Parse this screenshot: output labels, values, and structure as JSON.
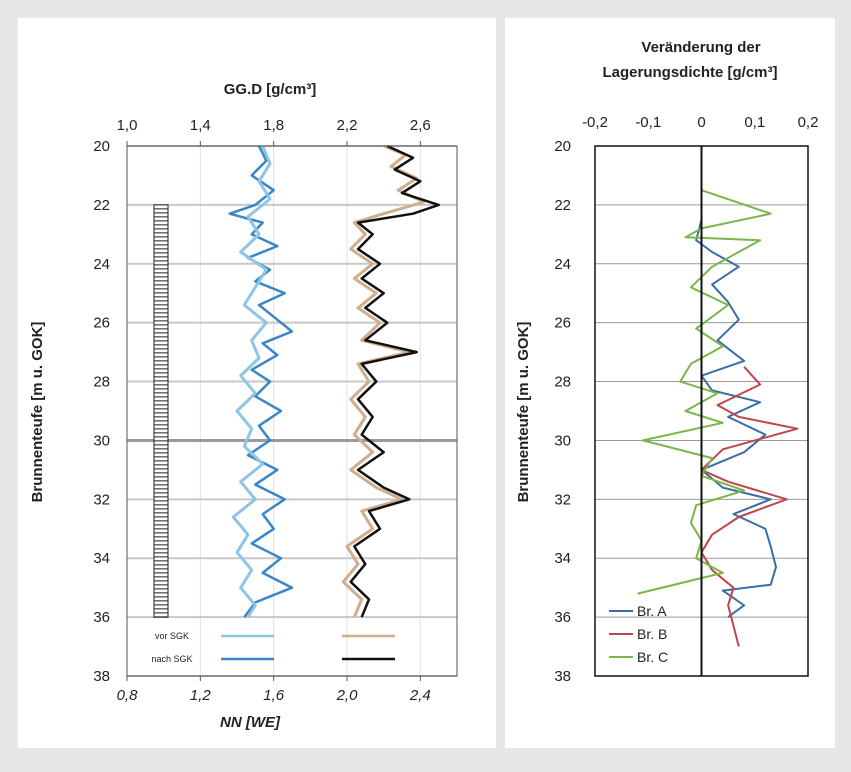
{
  "chart_data": [
    {
      "type": "line",
      "title_top": "GG.D [g/cm³]",
      "xlabel_bottom": "NN [WE]",
      "ylabel": "Brunnenteufe [m u. GOK]",
      "top_axis": {
        "ticks": [
          "1,0",
          "1,4",
          "1,8",
          "2,2",
          "2,6"
        ],
        "range": [
          1.0,
          2.8
        ]
      },
      "bottom_axis": {
        "ticks": [
          "0,8",
          "1,2",
          "1,6",
          "2,0",
          "2,4"
        ],
        "range": [
          0.8,
          2.6
        ]
      },
      "y_axis": {
        "ticks": [
          "20",
          "22",
          "24",
          "26",
          "28",
          "30",
          "32",
          "34",
          "36",
          "38"
        ],
        "range": [
          20,
          38
        ],
        "inverted": true
      },
      "legend": [
        {
          "label": "vor SGK",
          "colors": [
            "#8ec4e6",
            "#cfae8c"
          ]
        },
        {
          "label": "nach SGK",
          "colors": [
            "#3a86c6",
            "#111111"
          ]
        }
      ],
      "column_marker": {
        "from_depth": 22,
        "to_depth": 36
      },
      "grid": true,
      "series": [
        {
          "color": "#3a86c6",
          "points": [
            [
              1.72,
              20.0
            ],
            [
              1.76,
              20.5
            ],
            [
              1.68,
              21.0
            ],
            [
              1.8,
              21.5
            ],
            [
              1.7,
              22.0
            ],
            [
              1.56,
              22.3
            ],
            [
              1.74,
              22.6
            ],
            [
              1.68,
              23.0
            ],
            [
              1.82,
              23.4
            ],
            [
              1.66,
              23.8
            ],
            [
              1.78,
              24.2
            ],
            [
              1.7,
              24.6
            ],
            [
              1.86,
              25.0
            ],
            [
              1.72,
              25.4
            ],
            [
              1.8,
              25.8
            ],
            [
              1.9,
              26.3
            ],
            [
              1.74,
              26.7
            ],
            [
              1.82,
              27.1
            ],
            [
              1.68,
              27.6
            ],
            [
              1.78,
              28.0
            ],
            [
              1.7,
              28.5
            ],
            [
              1.84,
              29.0
            ],
            [
              1.72,
              29.5
            ],
            [
              1.78,
              30.0
            ],
            [
              1.66,
              30.5
            ],
            [
              1.82,
              31.0
            ],
            [
              1.7,
              31.5
            ],
            [
              1.86,
              32.0
            ],
            [
              1.74,
              32.5
            ],
            [
              1.8,
              33.0
            ],
            [
              1.68,
              33.5
            ],
            [
              1.84,
              34.0
            ],
            [
              1.74,
              34.5
            ],
            [
              1.9,
              35.0
            ],
            [
              1.7,
              35.5
            ],
            [
              1.64,
              36.0
            ]
          ]
        },
        {
          "color": "#8ec4e6",
          "points": [
            [
              1.74,
              20.0
            ],
            [
              1.78,
              20.6
            ],
            [
              1.72,
              21.2
            ],
            [
              1.78,
              21.8
            ],
            [
              1.66,
              22.4
            ],
            [
              1.72,
              23.0
            ],
            [
              1.62,
              23.6
            ],
            [
              1.76,
              24.2
            ],
            [
              1.7,
              24.8
            ],
            [
              1.64,
              25.4
            ],
            [
              1.76,
              26.0
            ],
            [
              1.68,
              26.6
            ],
            [
              1.72,
              27.2
            ],
            [
              1.62,
              27.8
            ],
            [
              1.7,
              28.4
            ],
            [
              1.6,
              29.0
            ],
            [
              1.68,
              29.6
            ],
            [
              1.64,
              30.2
            ],
            [
              1.74,
              30.8
            ],
            [
              1.62,
              31.4
            ],
            [
              1.7,
              32.0
            ],
            [
              1.58,
              32.6
            ],
            [
              1.66,
              33.2
            ],
            [
              1.6,
              33.8
            ],
            [
              1.68,
              34.4
            ],
            [
              1.62,
              35.0
            ],
            [
              1.7,
              35.6
            ],
            [
              1.66,
              36.0
            ]
          ]
        },
        {
          "color": "#cfae8c",
          "points": [
            [
              2.4,
              20.0
            ],
            [
              2.52,
              20.3
            ],
            [
              2.44,
              20.7
            ],
            [
              2.58,
              21.1
            ],
            [
              2.48,
              21.5
            ],
            [
              2.62,
              21.9
            ],
            [
              2.4,
              22.3
            ],
            [
              2.24,
              22.6
            ],
            [
              2.3,
              23.0
            ],
            [
              2.22,
              23.5
            ],
            [
              2.34,
              24.0
            ],
            [
              2.24,
              24.5
            ],
            [
              2.36,
              25.0
            ],
            [
              2.26,
              25.5
            ],
            [
              2.38,
              26.0
            ],
            [
              2.28,
              26.6
            ],
            [
              2.54,
              27.0
            ],
            [
              2.26,
              27.4
            ],
            [
              2.32,
              28.0
            ],
            [
              2.22,
              28.6
            ],
            [
              2.3,
              29.2
            ],
            [
              2.24,
              29.8
            ],
            [
              2.34,
              30.4
            ],
            [
              2.22,
              31.0
            ],
            [
              2.36,
              31.6
            ],
            [
              2.5,
              32.0
            ],
            [
              2.28,
              32.4
            ],
            [
              2.34,
              33.0
            ],
            [
              2.2,
              33.6
            ],
            [
              2.26,
              34.2
            ],
            [
              2.18,
              34.8
            ],
            [
              2.28,
              35.4
            ],
            [
              2.24,
              36.0
            ]
          ]
        },
        {
          "color": "#111111",
          "points": [
            [
              2.42,
              20.0
            ],
            [
              2.56,
              20.4
            ],
            [
              2.46,
              20.8
            ],
            [
              2.6,
              21.2
            ],
            [
              2.5,
              21.6
            ],
            [
              2.7,
              22.0
            ],
            [
              2.56,
              22.3
            ],
            [
              2.26,
              22.6
            ],
            [
              2.34,
              23.0
            ],
            [
              2.26,
              23.5
            ],
            [
              2.38,
              24.0
            ],
            [
              2.28,
              24.5
            ],
            [
              2.4,
              25.0
            ],
            [
              2.3,
              25.5
            ],
            [
              2.42,
              26.0
            ],
            [
              2.3,
              26.6
            ],
            [
              2.58,
              27.0
            ],
            [
              2.28,
              27.4
            ],
            [
              2.36,
              28.0
            ],
            [
              2.26,
              28.6
            ],
            [
              2.34,
              29.2
            ],
            [
              2.28,
              29.8
            ],
            [
              2.4,
              30.4
            ],
            [
              2.26,
              31.0
            ],
            [
              2.4,
              31.6
            ],
            [
              2.54,
              32.0
            ],
            [
              2.32,
              32.4
            ],
            [
              2.38,
              33.0
            ],
            [
              2.24,
              33.6
            ],
            [
              2.3,
              34.2
            ],
            [
              2.22,
              34.8
            ],
            [
              2.32,
              35.4
            ],
            [
              2.28,
              36.0
            ]
          ]
        }
      ]
    },
    {
      "type": "line",
      "title": [
        "Veränderung der",
        "Lagerungsdichte [g/cm³]"
      ],
      "ylabel": "Brunnenteufe [m u. GOK]",
      "x_axis": {
        "ticks": [
          "-0,2",
          "-0,1",
          "0",
          "0,1",
          "0,2"
        ],
        "range": [
          -0.2,
          0.2
        ]
      },
      "y_axis": {
        "ticks": [
          "20",
          "22",
          "24",
          "26",
          "28",
          "30",
          "32",
          "34",
          "36",
          "38"
        ],
        "range": [
          20,
          38
        ],
        "inverted": true
      },
      "grid": true,
      "legend": [
        {
          "label": "Br. A",
          "color": "#3a6ea5"
        },
        {
          "label": "Br. B",
          "color": "#c0464a"
        },
        {
          "label": "Br. C",
          "color": "#7ab648"
        }
      ],
      "series": [
        {
          "name": "Br. A",
          "color": "#3a6ea5",
          "points": [
            [
              0.0,
              22.5
            ],
            [
              -0.01,
              23.2
            ],
            [
              0.02,
              23.6
            ],
            [
              0.07,
              24.1
            ],
            [
              0.02,
              24.7
            ],
            [
              0.05,
              25.3
            ],
            [
              0.07,
              25.9
            ],
            [
              0.03,
              26.6
            ],
            [
              0.08,
              27.3
            ],
            [
              0.0,
              27.8
            ],
            [
              0.02,
              28.3
            ],
            [
              0.11,
              28.7
            ],
            [
              0.05,
              29.2
            ],
            [
              0.12,
              29.8
            ],
            [
              0.08,
              30.4
            ],
            [
              0.0,
              31.0
            ],
            [
              0.04,
              31.6
            ],
            [
              0.13,
              32.0
            ],
            [
              0.06,
              32.5
            ],
            [
              0.12,
              33.0
            ],
            [
              0.13,
              33.6
            ],
            [
              0.14,
              34.3
            ],
            [
              0.13,
              34.9
            ],
            [
              0.04,
              35.1
            ],
            [
              0.08,
              35.6
            ],
            [
              0.05,
              36.0
            ]
          ]
        },
        {
          "name": "Br. B",
          "color": "#c0464a",
          "points": [
            [
              0.08,
              27.5
            ],
            [
              0.11,
              28.1
            ],
            [
              0.03,
              28.8
            ],
            [
              0.07,
              29.2
            ],
            [
              0.18,
              29.6
            ],
            [
              0.04,
              30.3
            ],
            [
              0.0,
              31.0
            ],
            [
              0.05,
              31.4
            ],
            [
              0.16,
              32.0
            ],
            [
              0.07,
              32.6
            ],
            [
              0.02,
              33.2
            ],
            [
              0.0,
              33.8
            ],
            [
              0.02,
              34.4
            ],
            [
              0.06,
              35.0
            ],
            [
              0.05,
              35.6
            ],
            [
              0.06,
              36.3
            ],
            [
              0.07,
              37.0
            ]
          ]
        },
        {
          "name": "Br. C",
          "color": "#7ab648",
          "points": [
            [
              0.0,
              21.5
            ],
            [
              0.13,
              22.3
            ],
            [
              0.0,
              22.8
            ],
            [
              -0.03,
              23.1
            ],
            [
              0.11,
              23.2
            ],
            [
              0.02,
              24.1
            ],
            [
              -0.02,
              24.8
            ],
            [
              0.05,
              25.4
            ],
            [
              -0.01,
              26.2
            ],
            [
              0.04,
              26.8
            ],
            [
              -0.02,
              27.4
            ],
            [
              -0.04,
              28.0
            ],
            [
              0.03,
              28.4
            ],
            [
              -0.03,
              29.0
            ],
            [
              0.04,
              29.4
            ],
            [
              -0.11,
              30.0
            ],
            [
              0.02,
              30.6
            ],
            [
              0.0,
              31.2
            ],
            [
              0.08,
              31.7
            ],
            [
              -0.01,
              32.2
            ],
            [
              -0.02,
              32.8
            ],
            [
              0.0,
              33.4
            ],
            [
              -0.01,
              34.0
            ],
            [
              0.04,
              34.5
            ],
            [
              -0.12,
              35.2
            ]
          ]
        }
      ]
    }
  ]
}
